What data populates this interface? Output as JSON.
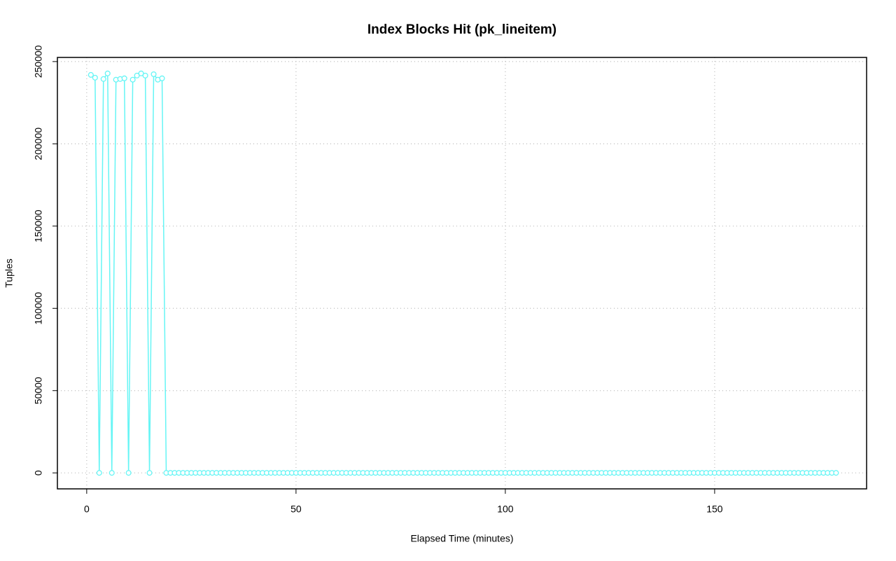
{
  "chart_data": {
    "type": "line",
    "title": "Index Blocks Hit (pk_lineitem)",
    "xlabel": "Elapsed Time (minutes)",
    "ylabel": "Tuples",
    "x": [
      1,
      2,
      3,
      4,
      5,
      6,
      7,
      8,
      9,
      10,
      11,
      12,
      13,
      14,
      15,
      16,
      17,
      18,
      19,
      20,
      21,
      22,
      23,
      24,
      25,
      26,
      27,
      28,
      29,
      30,
      31,
      32,
      33,
      34,
      35,
      36,
      37,
      38,
      39,
      40,
      41,
      42,
      43,
      44,
      45,
      46,
      47,
      48,
      49,
      50,
      51,
      52,
      53,
      54,
      55,
      56,
      57,
      58,
      59,
      60,
      61,
      62,
      63,
      64,
      65,
      66,
      67,
      68,
      69,
      70,
      71,
      72,
      73,
      74,
      75,
      76,
      77,
      78,
      79,
      80,
      81,
      82,
      83,
      84,
      85,
      86,
      87,
      88,
      89,
      90,
      91,
      92,
      93,
      94,
      95,
      96,
      97,
      98,
      99,
      100,
      101,
      102,
      103,
      104,
      105,
      106,
      107,
      108,
      109,
      110,
      111,
      112,
      113,
      114,
      115,
      116,
      117,
      118,
      119,
      120,
      121,
      122,
      123,
      124,
      125,
      126,
      127,
      128,
      129,
      130,
      131,
      132,
      133,
      134,
      135,
      136,
      137,
      138,
      139,
      140,
      141,
      142,
      143,
      144,
      145,
      146,
      147,
      148,
      149,
      150,
      151,
      152,
      153,
      154,
      155,
      156,
      157,
      158,
      159,
      160,
      161,
      162,
      163,
      164,
      165,
      166,
      167,
      168,
      169,
      170,
      171,
      172,
      173,
      174,
      175,
      176,
      177,
      178,
      179
    ],
    "series": [
      {
        "name": "pk_lineitem",
        "color": "#66f5f5",
        "values": [
          241900,
          240200,
          0,
          239400,
          242800,
          0,
          239000,
          239400,
          239800,
          0,
          239000,
          241500,
          242800,
          241500,
          0,
          242300,
          239000,
          239800,
          0,
          0,
          0,
          0,
          0,
          0,
          0,
          0,
          0,
          0,
          0,
          0,
          0,
          0,
          0,
          0,
          0,
          0,
          0,
          0,
          0,
          0,
          0,
          0,
          0,
          0,
          0,
          0,
          0,
          0,
          0,
          0,
          0,
          0,
          0,
          0,
          0,
          0,
          0,
          0,
          0,
          0,
          0,
          0,
          0,
          0,
          0,
          0,
          0,
          0,
          0,
          0,
          0,
          0,
          0,
          0,
          0,
          0,
          0,
          0,
          0,
          0,
          0,
          0,
          0,
          0,
          0,
          0,
          0,
          0,
          0,
          0,
          0,
          0,
          0,
          0,
          0,
          0,
          0,
          0,
          0,
          0,
          0,
          0,
          0,
          0,
          0,
          0,
          0,
          0,
          0,
          0,
          0,
          0,
          0,
          0,
          0,
          0,
          0,
          0,
          0,
          0,
          0,
          0,
          0,
          0,
          0,
          0,
          0,
          0,
          0,
          0,
          0,
          0,
          0,
          0,
          0,
          0,
          0,
          0,
          0,
          0,
          0,
          0,
          0,
          0,
          0,
          0,
          0,
          0,
          0,
          0,
          0,
          0,
          0,
          0,
          0,
          0,
          0,
          0,
          0,
          0,
          0,
          0,
          0,
          0,
          0,
          0,
          0,
          0,
          0,
          0,
          0,
          0,
          0,
          0,
          0,
          0,
          0,
          0,
          0
        ]
      }
    ],
    "xlim": [
      -7,
      186.3
    ],
    "ylim": [
      -9712,
      252512
    ],
    "xticks": [
      0,
      50,
      100,
      150
    ],
    "yticks": [
      0,
      50000,
      100000,
      150000,
      200000,
      250000
    ],
    "grid": true
  }
}
